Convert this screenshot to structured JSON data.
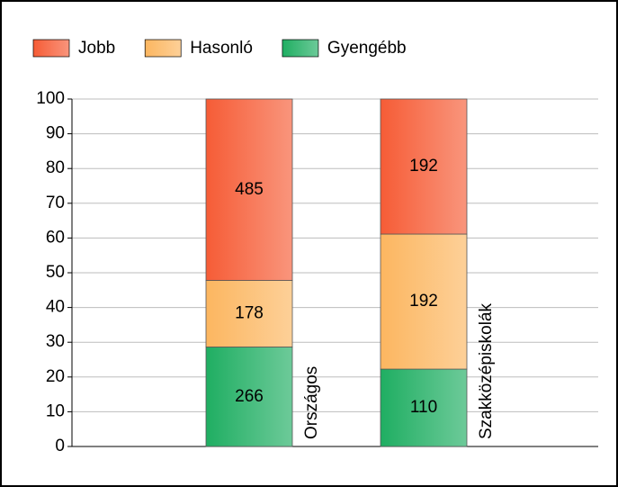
{
  "chart_data": {
    "type": "bar",
    "stacking": "percent",
    "categories": [
      "Országos",
      "Szakközépiskolák"
    ],
    "series": [
      {
        "name": "Gyengébb",
        "color": "#1fae62",
        "values": [
          266,
          110
        ]
      },
      {
        "name": "Hasonló",
        "color": "#fcb660",
        "values": [
          178,
          192
        ]
      },
      {
        "name": "Jobb",
        "color": "#f65c36",
        "values": [
          485,
          192
        ]
      }
    ],
    "legend_order": [
      2,
      1,
      0
    ],
    "ylim": [
      0,
      100
    ],
    "yticks": [
      0,
      10,
      20,
      30,
      40,
      50,
      60,
      70,
      80,
      90,
      100
    ],
    "grid": true
  }
}
